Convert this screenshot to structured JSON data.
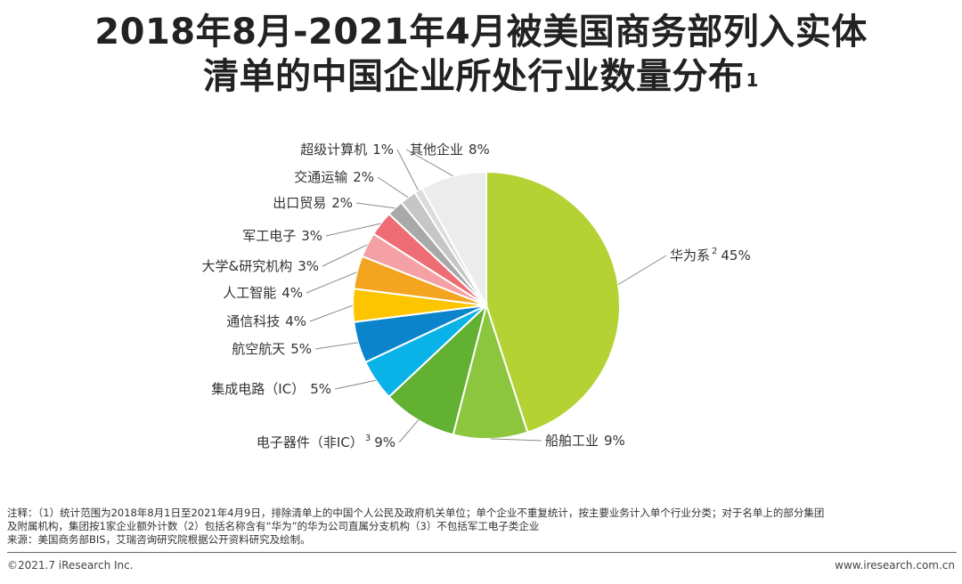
{
  "title": {
    "line1": "2018年8月-2021年4月被美国商务部列入实体",
    "line2": "清单的中国企业所处行业数量分布",
    "sup": "1"
  },
  "chart_data": {
    "type": "pie",
    "slices": [
      {
        "label": "华为系",
        "sup": "2",
        "value": 45,
        "color": "#b5d234"
      },
      {
        "label": "船舶工业",
        "sup": "",
        "value": 9,
        "color": "#8cc63e"
      },
      {
        "label": "电子器件（非IC）",
        "sup": "3",
        "value": 9,
        "color": "#62b132"
      },
      {
        "label": "集成电路（IC）",
        "sup": "",
        "value": 5,
        "color": "#0ab3e7"
      },
      {
        "label": "航空航天",
        "sup": "",
        "value": 5,
        "color": "#0b84cc"
      },
      {
        "label": "通信科技",
        "sup": "",
        "value": 4,
        "color": "#fcc500"
      },
      {
        "label": "人工智能",
        "sup": "",
        "value": 4,
        "color": "#f4a51f"
      },
      {
        "label": "大学&研究机构",
        "sup": "",
        "value": 3,
        "color": "#f4a0a4"
      },
      {
        "label": "军工电子",
        "sup": "",
        "value": 3,
        "color": "#ee6c73"
      },
      {
        "label": "出口贸易",
        "sup": "",
        "value": 2,
        "color": "#a9a9a9"
      },
      {
        "label": "交通运输",
        "sup": "",
        "value": 2,
        "color": "#c6c6c6"
      },
      {
        "label": "超级计算机",
        "sup": "",
        "value": 1,
        "color": "#dcdcdc"
      },
      {
        "label": "其他企业",
        "sup": "",
        "value": 8,
        "color": "#ececec"
      }
    ],
    "unit": "%"
  },
  "notes": {
    "line1": "注释：（1）统计范围为2018年8月1日至2021年4月9日，排除清单上的中国个人公民及政府机关单位；单个企业不重复统计，按主要业务计入单个行业分类；对于名单上的部分集团",
    "line2": "及附属机构，集团按1家企业额外计数（2）包括名称含有“华为”的华为公司直属分支机构（3）不包括军工电子类企业",
    "line3": "来源：美国商务部BIS，艾瑞咨询研究院根据公开资料研究及绘制。"
  },
  "footer": {
    "left": "©2021.7 iResearch Inc.",
    "right": "www.iresearch.com.cn"
  }
}
